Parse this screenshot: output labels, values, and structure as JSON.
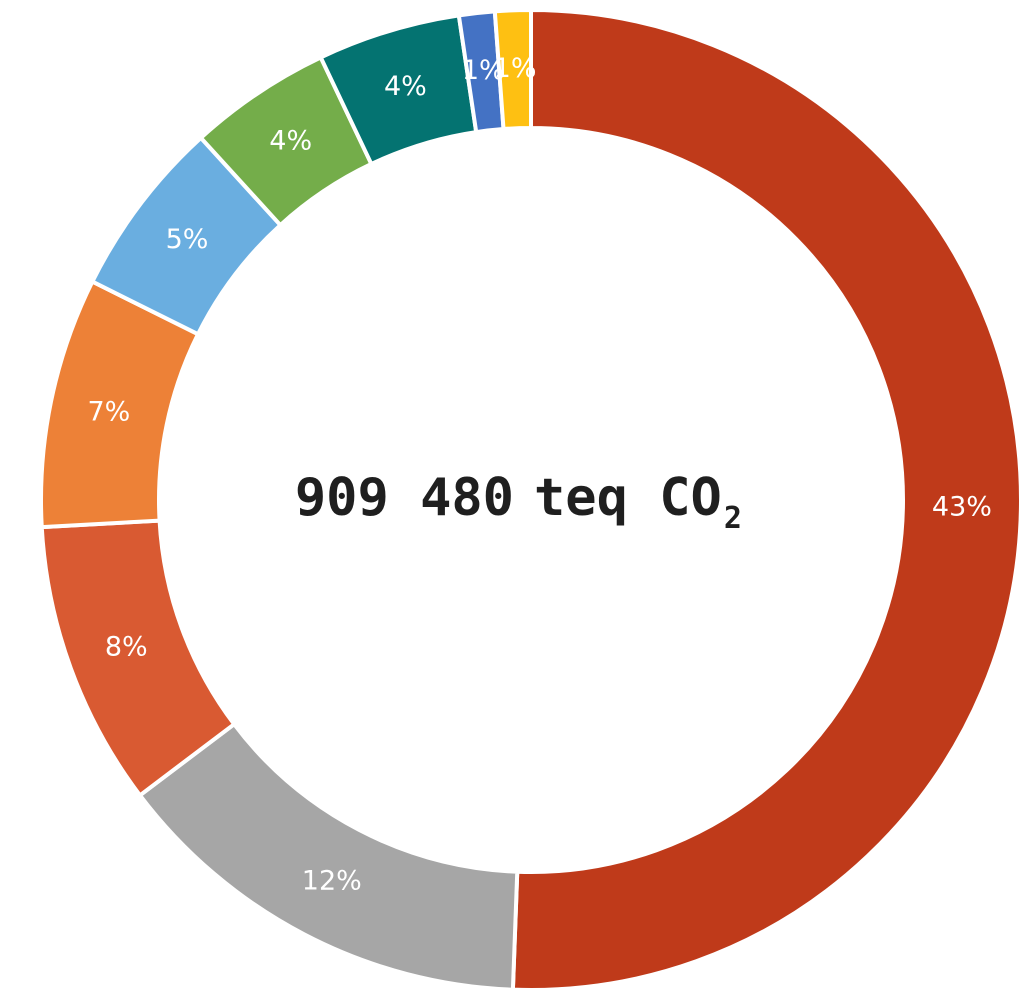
{
  "chart_data": {
    "type": "pie",
    "donut": true,
    "center_text": {
      "value": "909 480",
      "unit": "teq CO",
      "subscript": "2"
    },
    "slices": [
      {
        "value": 43,
        "label": "43%",
        "color": "#bf3a1a"
      },
      {
        "value": 12,
        "label": "12%",
        "color": "#a6a6a6"
      },
      {
        "value": 8,
        "label": "8%",
        "color": "#d95a32"
      },
      {
        "value": 7,
        "label": "7%",
        "color": "#ed8137"
      },
      {
        "value": 5,
        "label": "5%",
        "color": "#6aaee0"
      },
      {
        "value": 4,
        "label": "4%",
        "color": "#74ad4a"
      },
      {
        "value": 4,
        "label": "4%",
        "color": "#047371"
      },
      {
        "value": 1,
        "label": "1%",
        "color": "#4472c4"
      },
      {
        "value": 1,
        "label": "1%",
        "color": "#fec012"
      }
    ]
  }
}
